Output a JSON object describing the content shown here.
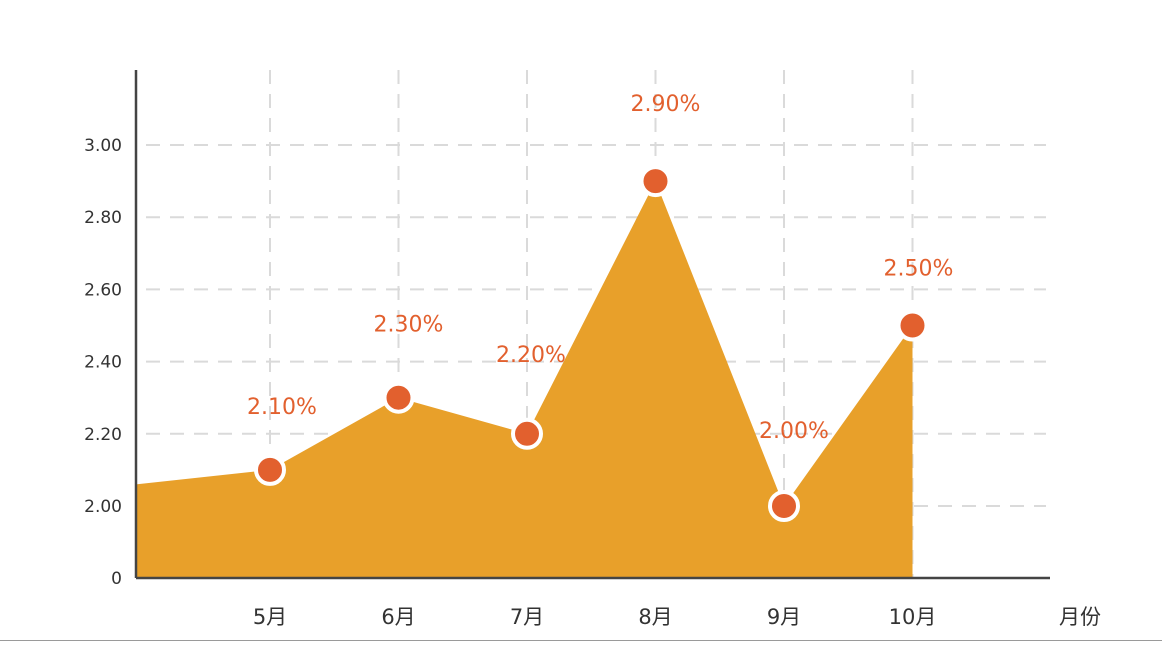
{
  "chart_data": {
    "type": "area",
    "categories": [
      "5月",
      "6月",
      "7月",
      "8月",
      "9月",
      "10月"
    ],
    "values": [
      2.1,
      2.3,
      2.2,
      2.9,
      2.0,
      2.5
    ],
    "data_labels": [
      "2.10%",
      "2.30%",
      "2.20%",
      "2.90%",
      "2.00%",
      "2.50%"
    ],
    "y_ticks": [
      {
        "value": 0,
        "label": "0"
      },
      {
        "value": 2.0,
        "label": "2.00"
      },
      {
        "value": 2.2,
        "label": "2.20"
      },
      {
        "value": 2.4,
        "label": "2.40"
      },
      {
        "value": 2.6,
        "label": "2.60"
      },
      {
        "value": 2.8,
        "label": "2.80"
      },
      {
        "value": 3.0,
        "label": "3.00"
      }
    ],
    "area_start_value": 2.06,
    "x_unit": "月份",
    "grid": true,
    "colors": {
      "area": "#E8A02A",
      "marker": "#E2602E",
      "marker_outline": "#FFFFFF",
      "label": "#E2602E",
      "grid": "#DADADA",
      "axis": "#444444"
    }
  }
}
